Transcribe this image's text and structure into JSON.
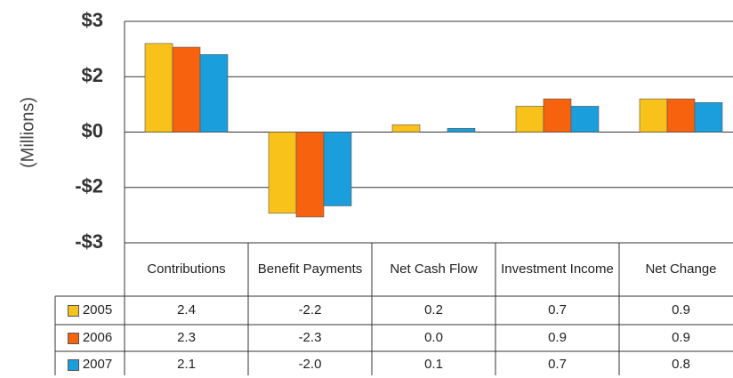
{
  "chart_data": {
    "type": "bar",
    "y_label": "(Millions)",
    "categories": [
      "Contributions",
      "Benefit Payments",
      "Net Cash Flow",
      "Investment Income",
      "Net Change"
    ],
    "series": [
      {
        "name": "2005",
        "color": "#f9c21a",
        "values": [
          2.4,
          -2.2,
          0.2,
          0.7,
          0.9
        ],
        "value_labels": [
          "2.4",
          "-2.2",
          "0.2",
          "0.7",
          "0.9"
        ]
      },
      {
        "name": "2006",
        "color": "#f7620f",
        "values": [
          2.3,
          -2.3,
          0.0,
          0.9,
          0.9
        ],
        "value_labels": [
          "2.3",
          "-2.3",
          "0.0",
          "0.9",
          "0.9"
        ]
      },
      {
        "name": "2007",
        "color": "#1a9fdc",
        "values": [
          2.1,
          -2.0,
          0.1,
          0.7,
          0.8
        ],
        "value_labels": [
          "2.1",
          "-2.0",
          "0.1",
          "0.7",
          "0.8"
        ]
      }
    ],
    "ylim": [
      -3,
      3
    ],
    "yticks": [
      {
        "value": 3,
        "label": "$3"
      },
      {
        "value": 1.5,
        "label": "$2"
      },
      {
        "value": 0,
        "label": "$0"
      },
      {
        "value": -1.5,
        "label": "-$2"
      },
      {
        "value": -3,
        "label": "-$3"
      }
    ],
    "grid": true
  }
}
